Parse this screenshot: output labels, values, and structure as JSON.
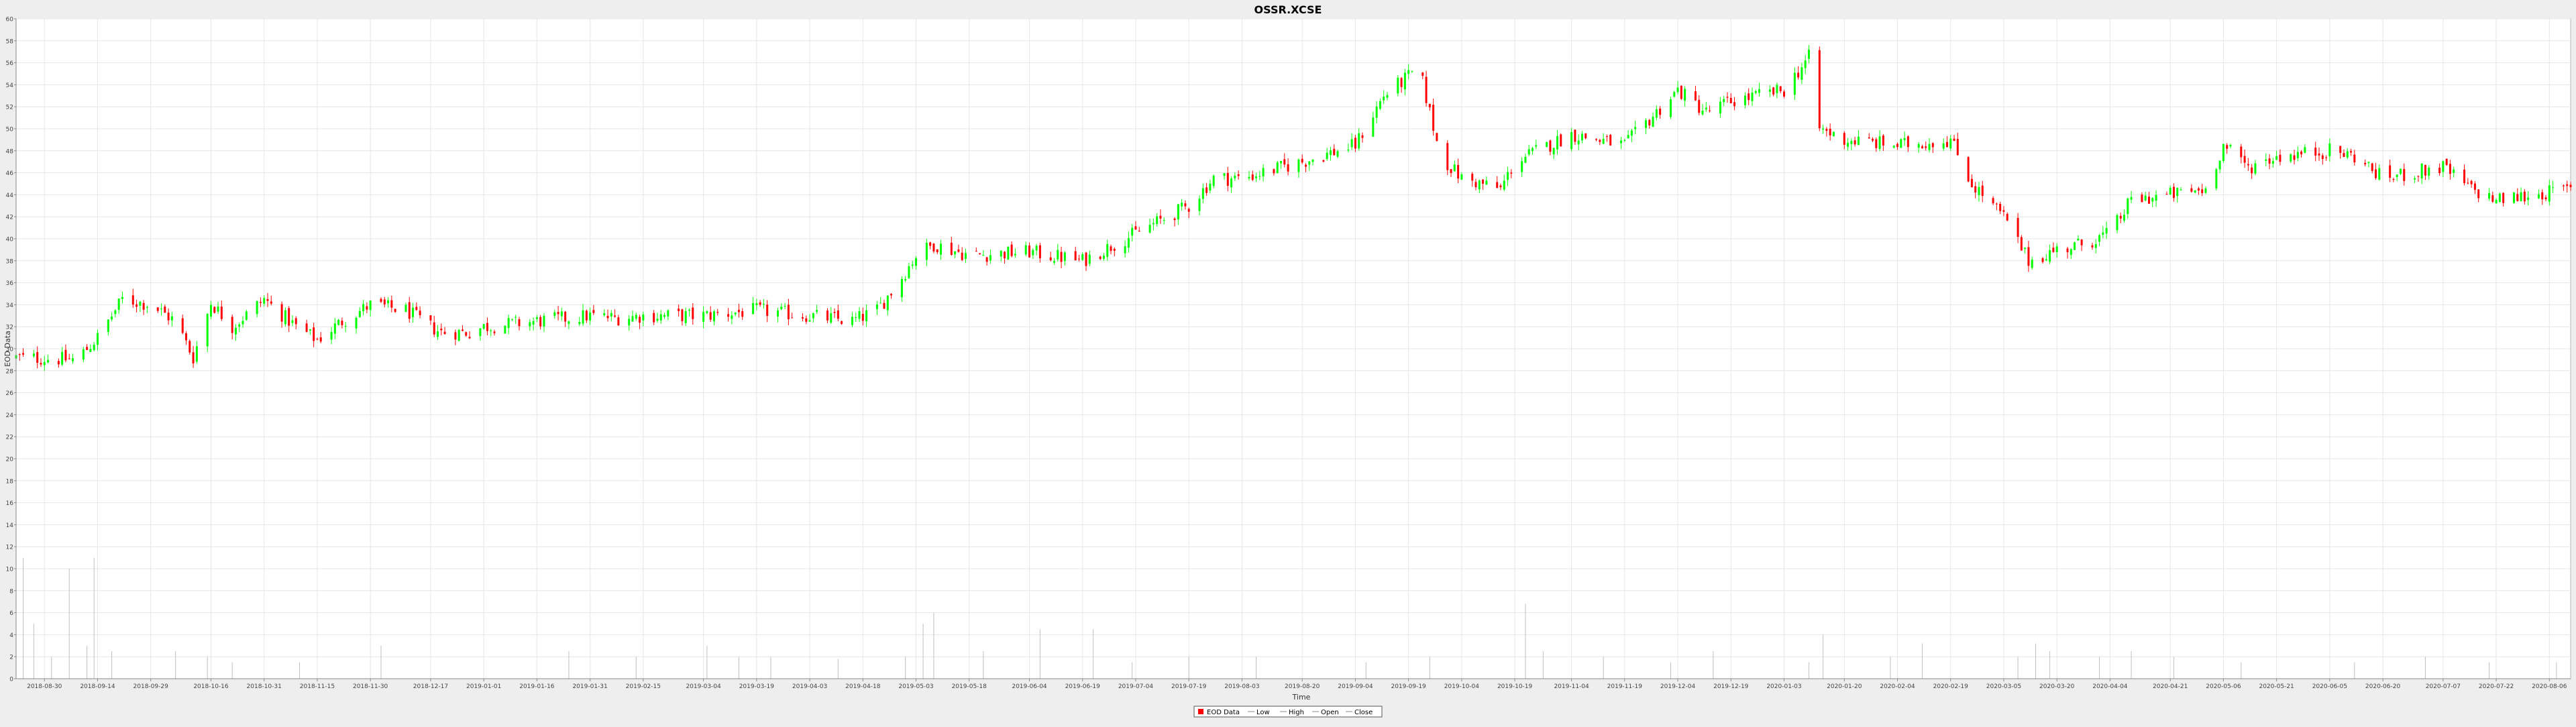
{
  "chart_data": {
    "type": "candlestick",
    "title": "OSSR.XCSE",
    "xlabel": "Time",
    "ylabel": "EOD Data",
    "ylim": [
      0,
      60
    ],
    "yticks": [
      0,
      2,
      4,
      6,
      8,
      10,
      12,
      14,
      16,
      18,
      20,
      22,
      24,
      26,
      28,
      30,
      32,
      34,
      36,
      38,
      40,
      42,
      44,
      46,
      48,
      50,
      52,
      54,
      56,
      58,
      60
    ],
    "xlim": [
      "2018-08-22",
      "2020-08-12"
    ],
    "xticks": [
      "2018-08-30",
      "2018-09-14",
      "2018-09-29",
      "2018-10-16",
      "2018-10-31",
      "2018-11-15",
      "2018-11-30",
      "2018-12-17",
      "2019-01-01",
      "2019-01-16",
      "2019-01-31",
      "2019-02-15",
      "2019-03-04",
      "2019-03-19",
      "2019-04-03",
      "2019-04-18",
      "2019-05-03",
      "2019-05-18",
      "2019-06-04",
      "2019-06-19",
      "2019-07-04",
      "2019-07-19",
      "2019-08-03",
      "2019-08-20",
      "2019-09-04",
      "2019-09-19",
      "2019-10-04",
      "2019-10-19",
      "2019-11-04",
      "2019-11-19",
      "2019-12-04",
      "2019-12-19",
      "2020-01-03",
      "2020-01-20",
      "2020-02-04",
      "2020-02-19",
      "2020-03-05",
      "2020-03-20",
      "2020-04-04",
      "2020-04-21",
      "2020-05-06",
      "2020-05-21",
      "2020-06-05",
      "2020-06-20",
      "2020-07-07",
      "2020-07-22",
      "2020-08-06"
    ],
    "grid": true,
    "legend": {
      "position": "bottom-center",
      "entries": [
        "EOD Data",
        "Low",
        "High",
        "Open",
        "Close"
      ]
    },
    "close_path": [
      [
        "2018-08-22",
        29.2
      ],
      [
        "2018-09-08",
        29.0
      ],
      [
        "2018-09-14",
        31.0
      ],
      [
        "2018-09-21",
        34.5
      ],
      [
        "2018-09-29",
        34.0
      ],
      [
        "2018-10-06",
        32.5
      ],
      [
        "2018-10-11",
        29.2
      ],
      [
        "2018-10-16",
        34.2
      ],
      [
        "2018-10-22",
        32.0
      ],
      [
        "2018-10-31",
        34.5
      ],
      [
        "2018-11-09",
        32.0
      ],
      [
        "2018-11-15",
        30.8
      ],
      [
        "2018-11-22",
        32.5
      ],
      [
        "2018-11-30",
        34.0
      ],
      [
        "2018-12-10",
        33.5
      ],
      [
        "2018-12-17",
        32.0
      ],
      [
        "2018-12-20",
        31.5
      ],
      [
        "2018-12-28",
        31.5
      ],
      [
        "2019-01-01",
        32.0
      ],
      [
        "2019-01-16",
        32.5
      ],
      [
        "2019-01-31",
        33.0
      ],
      [
        "2019-02-07",
        32.8
      ],
      [
        "2019-02-15",
        33.0
      ],
      [
        "2019-03-04",
        33.0
      ],
      [
        "2019-03-19",
        33.5
      ],
      [
        "2019-04-03",
        33.0
      ],
      [
        "2019-04-15",
        32.5
      ],
      [
        "2019-04-22",
        33.5
      ],
      [
        "2019-04-28",
        36.0
      ],
      [
        "2019-05-03",
        38.5
      ],
      [
        "2019-05-08",
        39.5
      ],
      [
        "2019-05-18",
        38.5
      ],
      [
        "2019-06-04",
        38.8
      ],
      [
        "2019-06-19",
        38.0
      ],
      [
        "2019-07-04",
        40.5
      ],
      [
        "2019-07-19",
        43.0
      ],
      [
        "2019-07-26",
        45.5
      ],
      [
        "2019-08-03",
        45.5
      ],
      [
        "2019-08-20",
        47.0
      ],
      [
        "2019-09-04",
        48.5
      ],
      [
        "2019-09-12",
        53.0
      ],
      [
        "2019-09-22",
        55.5
      ],
      [
        "2019-09-28",
        47.5
      ],
      [
        "2019-10-04",
        45.5
      ],
      [
        "2019-10-15",
        44.5
      ],
      [
        "2019-10-19",
        47.0
      ],
      [
        "2019-11-04",
        49.5
      ],
      [
        "2019-11-19",
        48.5
      ],
      [
        "2019-12-04",
        53.5
      ],
      [
        "2019-12-12",
        51.5
      ],
      [
        "2019-12-19",
        52.5
      ],
      [
        "2020-01-03",
        53.5
      ],
      [
        "2020-01-10",
        56.5
      ],
      [
        "2020-01-13",
        50.0
      ],
      [
        "2020-01-20",
        49.0
      ],
      [
        "2020-02-04",
        48.5
      ],
      [
        "2020-02-19",
        49.0
      ],
      [
        "2020-02-25",
        45.0
      ],
      [
        "2020-03-05",
        42.0
      ],
      [
        "2020-03-12",
        38.0
      ],
      [
        "2020-03-20",
        39.0
      ],
      [
        "2020-03-27",
        39.5
      ],
      [
        "2020-04-04",
        40.5
      ],
      [
        "2020-04-10",
        43.5
      ],
      [
        "2020-04-21",
        44.0
      ],
      [
        "2020-05-01",
        44.5
      ],
      [
        "2020-05-06",
        48.5
      ],
      [
        "2020-05-13",
        46.5
      ],
      [
        "2020-05-21",
        47.5
      ],
      [
        "2020-06-05",
        48.0
      ],
      [
        "2020-06-12",
        47.5
      ],
      [
        "2020-06-20",
        45.5
      ],
      [
        "2020-07-07",
        46.5
      ],
      [
        "2020-07-15",
        44.5
      ],
      [
        "2020-07-22",
        43.5
      ],
      [
        "2020-08-12",
        44.5
      ]
    ],
    "volume_spikes": [
      [
        "2018-08-24",
        11.0
      ],
      [
        "2018-08-27",
        5.0
      ],
      [
        "2018-09-01",
        2.0
      ],
      [
        "2018-09-06",
        10.0
      ],
      [
        "2018-09-11",
        3.0
      ],
      [
        "2018-09-13",
        11.0
      ],
      [
        "2018-09-18",
        2.5
      ],
      [
        "2018-10-06",
        2.5
      ],
      [
        "2018-10-15",
        2.0
      ],
      [
        "2018-10-22",
        1.5
      ],
      [
        "2018-11-10",
        1.5
      ],
      [
        "2018-12-03",
        3.0
      ],
      [
        "2019-01-25",
        2.5
      ],
      [
        "2019-02-13",
        2.0
      ],
      [
        "2019-03-05",
        3.0
      ],
      [
        "2019-03-14",
        2.0
      ],
      [
        "2019-03-23",
        2.0
      ],
      [
        "2019-04-11",
        1.8
      ],
      [
        "2019-04-30",
        2.0
      ],
      [
        "2019-05-05",
        5.0
      ],
      [
        "2019-05-08",
        6.0
      ],
      [
        "2019-05-22",
        2.5
      ],
      [
        "2019-06-07",
        4.5
      ],
      [
        "2019-06-22",
        4.5
      ],
      [
        "2019-07-03",
        1.5
      ],
      [
        "2019-07-19",
        2.0
      ],
      [
        "2019-08-07",
        2.0
      ],
      [
        "2019-09-07",
        1.5
      ],
      [
        "2019-09-25",
        2.0
      ],
      [
        "2019-10-22",
        6.8
      ],
      [
        "2019-10-27",
        2.5
      ],
      [
        "2019-11-13",
        2.0
      ],
      [
        "2019-12-02",
        1.5
      ],
      [
        "2019-12-14",
        2.5
      ],
      [
        "2020-01-10",
        1.5
      ],
      [
        "2020-01-14",
        4.0
      ],
      [
        "2020-02-02",
        2.0
      ],
      [
        "2020-02-11",
        3.2
      ],
      [
        "2020-03-09",
        2.0
      ],
      [
        "2020-03-14",
        3.2
      ],
      [
        "2020-03-18",
        2.5
      ],
      [
        "2020-04-01",
        2.0
      ],
      [
        "2020-04-10",
        2.5
      ],
      [
        "2020-04-22",
        2.0
      ],
      [
        "2020-05-11",
        1.5
      ],
      [
        "2020-06-12",
        1.5
      ],
      [
        "2020-07-02",
        2.0
      ],
      [
        "2020-07-20",
        1.5
      ],
      [
        "2020-08-08",
        1.5
      ]
    ]
  },
  "colors": {
    "background": "#eeeeee",
    "plot_background": "#ffffff",
    "grid": "#e6e6e6",
    "up": "#00ff00",
    "down": "#ff0000",
    "volume": "#c0c0c0"
  }
}
